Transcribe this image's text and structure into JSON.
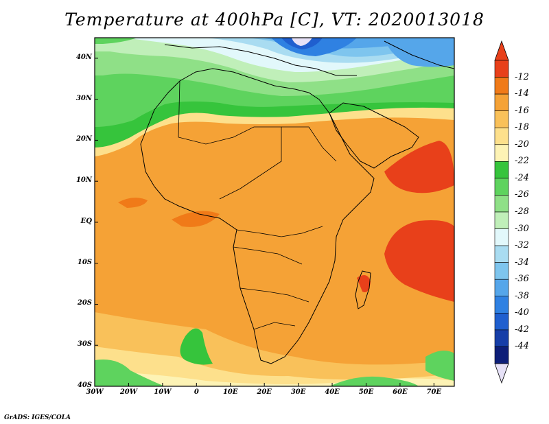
{
  "title": "Temperature at 400hPa [C], VT: 2020013018",
  "credit": "GrADS: IGES/COLA",
  "map": {
    "lon_range": [
      -30,
      76
    ],
    "lat_range": [
      -40,
      45
    ],
    "lat_ticks": [
      {
        "lat": 40,
        "label": "40N"
      },
      {
        "lat": 30,
        "label": "30N"
      },
      {
        "lat": 20,
        "label": "20N"
      },
      {
        "lat": 10,
        "label": "10N"
      },
      {
        "lat": 0,
        "label": "EQ"
      },
      {
        "lat": -10,
        "label": "10S"
      },
      {
        "lat": -20,
        "label": "20S"
      },
      {
        "lat": -30,
        "label": "30S"
      },
      {
        "lat": -40,
        "label": "40S"
      }
    ],
    "lon_ticks": [
      {
        "lon": -30,
        "label": "30W"
      },
      {
        "lon": -20,
        "label": "20W"
      },
      {
        "lon": -10,
        "label": "10W"
      },
      {
        "lon": 0,
        "label": "0"
      },
      {
        "lon": 10,
        "label": "10E"
      },
      {
        "lon": 20,
        "label": "20E"
      },
      {
        "lon": 30,
        "label": "30E"
      },
      {
        "lon": 40,
        "label": "40E"
      },
      {
        "lon": 50,
        "label": "50E"
      },
      {
        "lon": 60,
        "label": "60E"
      },
      {
        "lon": 70,
        "label": "70E"
      }
    ]
  },
  "colorbar": {
    "levels": [
      "-12",
      "-14",
      "-16",
      "-18",
      "-20",
      "-22",
      "-24",
      "-26",
      "-28",
      "-30",
      "-32",
      "-34",
      "-36",
      "-38",
      "-40",
      "-42",
      "-44"
    ],
    "colors": [
      "#e8401a",
      "#f07a18",
      "#f5a236",
      "#f9c15a",
      "#fde08c",
      "#fdf3b5",
      "#36c43c",
      "#5ed35e",
      "#8fe087",
      "#c0efb9",
      "#e2f8fb",
      "#a9dcf1",
      "#7ec5ee",
      "#55a6ea",
      "#2f81e2",
      "#1f5fcf",
      "#163ea8",
      "#0d1e78"
    ],
    "top_arrow_color": "#e8401a",
    "bottom_arrow_color": "#e6e1f7"
  }
}
